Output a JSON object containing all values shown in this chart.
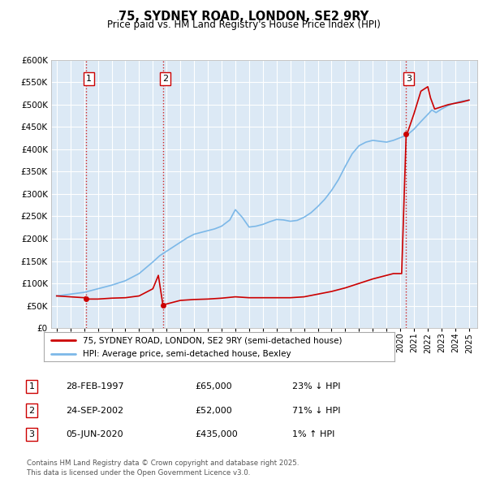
{
  "title": "75, SYDNEY ROAD, LONDON, SE2 9RY",
  "subtitle": "Price paid vs. HM Land Registry's House Price Index (HPI)",
  "ylim": [
    0,
    600000
  ],
  "yticks": [
    0,
    50000,
    100000,
    150000,
    200000,
    250000,
    300000,
    350000,
    400000,
    450000,
    500000,
    550000,
    600000
  ],
  "xlim_start": 1994.6,
  "xlim_end": 2025.6,
  "background_color": "#ffffff",
  "plot_bg_color": "#dce9f5",
  "grid_color": "#ffffff",
  "hpi_color": "#7cb8e8",
  "price_color": "#cc0000",
  "sale_points": [
    {
      "year": 1997.15,
      "price": 65000,
      "label": "1"
    },
    {
      "year": 2002.73,
      "price": 52000,
      "label": "2"
    },
    {
      "year": 2020.43,
      "price": 435000,
      "label": "3"
    }
  ],
  "vline_color": "#cc0000",
  "legend_entries": [
    "75, SYDNEY ROAD, LONDON, SE2 9RY (semi-detached house)",
    "HPI: Average price, semi-detached house, Bexley"
  ],
  "table_rows": [
    {
      "num": "1",
      "date": "28-FEB-1997",
      "price": "£65,000",
      "pct": "23% ↓ HPI"
    },
    {
      "num": "2",
      "date": "24-SEP-2002",
      "price": "£52,000",
      "pct": "71% ↓ HPI"
    },
    {
      "num": "3",
      "date": "05-JUN-2020",
      "price": "£435,000",
      "pct": "1% ↑ HPI"
    }
  ],
  "footnote": "Contains HM Land Registry data © Crown copyright and database right 2025.\nThis data is licensed under the Open Government Licence v3.0.",
  "hpi_x": [
    1995.0,
    1995.5,
    1996.0,
    1996.5,
    1997.0,
    1997.5,
    1998.0,
    1998.5,
    1999.0,
    1999.5,
    2000.0,
    2000.5,
    2001.0,
    2001.5,
    2002.0,
    2002.5,
    2003.0,
    2003.5,
    2004.0,
    2004.5,
    2005.0,
    2005.5,
    2006.0,
    2006.5,
    2007.0,
    2007.3,
    2007.6,
    2008.0,
    2008.5,
    2009.0,
    2009.5,
    2010.0,
    2010.5,
    2011.0,
    2011.5,
    2012.0,
    2012.5,
    2013.0,
    2013.5,
    2014.0,
    2014.5,
    2015.0,
    2015.5,
    2016.0,
    2016.5,
    2017.0,
    2017.5,
    2018.0,
    2018.5,
    2019.0,
    2019.5,
    2020.0,
    2020.5,
    2021.0,
    2021.5,
    2022.0,
    2022.3,
    2022.6,
    2023.0,
    2023.5,
    2024.0,
    2024.5,
    2025.0
  ],
  "hpi_y": [
    72000,
    74000,
    76000,
    78000,
    80000,
    84000,
    88000,
    92000,
    96000,
    101000,
    106000,
    114000,
    122000,
    135000,
    148000,
    162000,
    172000,
    182000,
    192000,
    202000,
    210000,
    214000,
    218000,
    222000,
    228000,
    235000,
    242000,
    265000,
    248000,
    226000,
    228000,
    232000,
    238000,
    243000,
    242000,
    239000,
    241000,
    248000,
    258000,
    272000,
    288000,
    308000,
    332000,
    362000,
    390000,
    408000,
    416000,
    420000,
    418000,
    416000,
    420000,
    426000,
    432000,
    445000,
    462000,
    478000,
    488000,
    482000,
    490000,
    498000,
    504000,
    508000,
    510000
  ],
  "pp_x": [
    1995.0,
    1995.5,
    1996.0,
    1996.5,
    1997.0,
    1997.1,
    1997.15,
    1997.2,
    1997.5,
    1998.0,
    1999.0,
    2000.0,
    2001.0,
    2001.5,
    2002.0,
    2002.4,
    2002.73,
    2002.8,
    2003.0,
    2004.0,
    2005.0,
    2006.0,
    2007.0,
    2008.0,
    2009.0,
    2010.0,
    2011.0,
    2012.0,
    2013.0,
    2014.0,
    2015.0,
    2016.0,
    2017.0,
    2018.0,
    2019.0,
    2019.5,
    2020.0,
    2020.1,
    2020.43,
    2020.5,
    2021.0,
    2021.5,
    2022.0,
    2022.2,
    2022.5,
    2023.0,
    2023.5,
    2024.0,
    2024.5,
    2025.0
  ],
  "pp_y": [
    72000,
    71000,
    70000,
    69000,
    68000,
    70000,
    65000,
    65000,
    65000,
    65000,
    67000,
    68000,
    72000,
    80000,
    88000,
    118000,
    52000,
    52000,
    54000,
    62000,
    64000,
    65000,
    67000,
    70000,
    68000,
    68000,
    68000,
    68000,
    70000,
    76000,
    82000,
    90000,
    100000,
    110000,
    118000,
    122000,
    122000,
    122000,
    435000,
    435000,
    480000,
    530000,
    540000,
    515000,
    490000,
    495000,
    500000,
    503000,
    506000,
    510000
  ]
}
